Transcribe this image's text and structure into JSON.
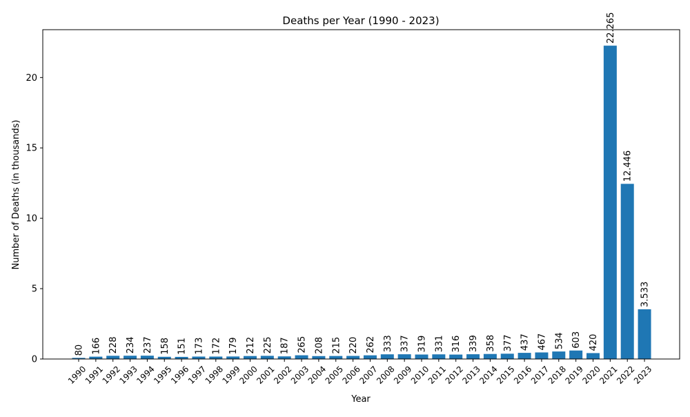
{
  "chart_data": {
    "type": "bar",
    "title": "Deaths per Year (1990 - 2023)",
    "xlabel": "Year",
    "ylabel": "Number of Deaths (in thousands)",
    "categories": [
      "1990",
      "1991",
      "1992",
      "1993",
      "1994",
      "1995",
      "1996",
      "1997",
      "1998",
      "1999",
      "2000",
      "2001",
      "2002",
      "2003",
      "2004",
      "2005",
      "2006",
      "2007",
      "2008",
      "2009",
      "2010",
      "2011",
      "2012",
      "2013",
      "2014",
      "2015",
      "2016",
      "2017",
      "2018",
      "2019",
      "2020",
      "2021",
      "2022",
      "2023"
    ],
    "values": [
      0.08,
      0.166,
      0.228,
      0.234,
      0.237,
      0.158,
      0.151,
      0.173,
      0.172,
      0.179,
      0.212,
      0.225,
      0.187,
      0.265,
      0.208,
      0.215,
      0.22,
      0.262,
      0.333,
      0.337,
      0.319,
      0.331,
      0.316,
      0.339,
      0.358,
      0.377,
      0.437,
      0.467,
      0.534,
      0.603,
      0.42,
      22.265,
      12.446,
      3.533
    ],
    "data_labels": [
      "80",
      "166",
      "228",
      "234",
      "237",
      "158",
      "151",
      "173",
      "172",
      "179",
      "212",
      "225",
      "187",
      "265",
      "208",
      "215",
      "220",
      "262",
      "333",
      "337",
      "319",
      "331",
      "316",
      "339",
      "358",
      "377",
      "437",
      "467",
      "534",
      "603",
      "420",
      "22.265",
      "12.446",
      "3.533"
    ],
    "y_ticks": [
      0,
      5,
      10,
      15,
      20
    ],
    "y_tick_labels": [
      "0",
      "5",
      "10",
      "15",
      "20"
    ],
    "ylim": [
      0,
      23.4
    ],
    "grid": false,
    "bar_color": "#1f77b4"
  }
}
